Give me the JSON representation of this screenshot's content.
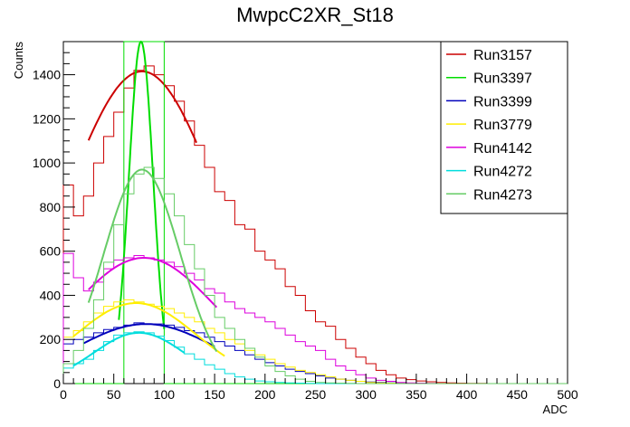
{
  "chart_data": {
    "type": "line",
    "title": "MwpcC2XR_St18",
    "xlabel": "ADC",
    "ylabel": "Counts",
    "xlim": [
      0,
      500
    ],
    "ylim": [
      0,
      1550
    ],
    "xticks": [
      0,
      50,
      100,
      150,
      200,
      250,
      300,
      350,
      400,
      450,
      500
    ],
    "yticks": [
      0,
      200,
      400,
      600,
      800,
      1000,
      1200,
      1400
    ],
    "grid": false,
    "legend_position": "top-right",
    "series": [
      {
        "name": "Run3157",
        "color": "#cc0000",
        "style": "histogram",
        "fit": {
          "mean": 78,
          "sigma": 75,
          "amplitude": 1415,
          "range": [
            25,
            132
          ]
        },
        "x": [
          0,
          10,
          20,
          30,
          40,
          50,
          60,
          70,
          80,
          90,
          100,
          110,
          120,
          130,
          140,
          150,
          160,
          170,
          180,
          190,
          200,
          210,
          220,
          230,
          240,
          250,
          260,
          270,
          280,
          290,
          300,
          310,
          320,
          330,
          340,
          350,
          360,
          370,
          380,
          390,
          400,
          410,
          420,
          430,
          440,
          450,
          460,
          470,
          480,
          490,
          500
        ],
        "values": [
          900,
          760,
          850,
          1000,
          1120,
          1230,
          1340,
          1420,
          1440,
          1400,
          1350,
          1280,
          1190,
          1080,
          980,
          870,
          830,
          720,
          700,
          600,
          560,
          520,
          440,
          400,
          330,
          280,
          260,
          200,
          160,
          120,
          90,
          60,
          40,
          25,
          18,
          12,
          8,
          5,
          3,
          2,
          1,
          1,
          0,
          0,
          0,
          0,
          0,
          0,
          0,
          0,
          0
        ]
      },
      {
        "name": "Run3397",
        "color": "#00dd00",
        "style": "histogram",
        "fit": {
          "mean": 77,
          "sigma": 12,
          "amplitude": 1550,
          "range": [
            55,
            100
          ]
        },
        "x": [
          0,
          10,
          20,
          30,
          40,
          50,
          60,
          70,
          80,
          90,
          100,
          110,
          120,
          130,
          140,
          150,
          160,
          170,
          180,
          190,
          200,
          210,
          220,
          230,
          240,
          250,
          260,
          270,
          280,
          290,
          300,
          310,
          320,
          330,
          340,
          350,
          360,
          370,
          380,
          390,
          400,
          410,
          420,
          430,
          440,
          450,
          460,
          470,
          480,
          490,
          500
        ],
        "values": [
          0,
          0,
          0,
          0,
          0,
          0,
          1550,
          1550,
          1550,
          1550,
          0,
          0,
          0,
          0,
          0,
          0,
          0,
          0,
          0,
          0,
          0,
          0,
          0,
          0,
          0,
          0,
          0,
          0,
          0,
          0,
          0,
          0,
          0,
          0,
          0,
          0,
          0,
          0,
          0,
          0,
          0,
          0,
          0,
          0,
          0,
          0,
          0,
          0,
          0,
          0,
          0
        ]
      },
      {
        "name": "Run3399",
        "color": "#0000bb",
        "style": "histogram",
        "fit": {
          "mean": 82,
          "sigma": 70,
          "amplitude": 270,
          "range": [
            20,
            150
          ]
        },
        "x": [
          0,
          10,
          20,
          30,
          40,
          50,
          60,
          70,
          80,
          90,
          100,
          110,
          120,
          130,
          140,
          150,
          160,
          170,
          180,
          190,
          200,
          210,
          220,
          230,
          240,
          250,
          260,
          270,
          280,
          290,
          300,
          310,
          320,
          330,
          340,
          350,
          360,
          370,
          380,
          390,
          400,
          410,
          420,
          430,
          440,
          450,
          460,
          470,
          480,
          490,
          500
        ],
        "values": [
          180,
          200,
          210,
          230,
          245,
          255,
          265,
          275,
          270,
          270,
          265,
          255,
          240,
          230,
          210,
          190,
          170,
          150,
          130,
          110,
          95,
          80,
          65,
          55,
          45,
          35,
          25,
          20,
          15,
          10,
          7,
          5,
          3,
          2,
          1,
          0,
          0,
          0,
          0,
          0,
          0,
          0,
          0,
          0,
          0,
          0,
          0,
          0,
          0,
          0,
          0
        ]
      },
      {
        "name": "Run3779",
        "color": "#ffee00",
        "style": "histogram",
        "fit": {
          "mean": 72,
          "sigma": 60,
          "amplitude": 365,
          "range": [
            10,
            160
          ]
        },
        "x": [
          0,
          10,
          20,
          30,
          40,
          50,
          60,
          70,
          80,
          90,
          100,
          110,
          120,
          130,
          140,
          150,
          160,
          170,
          180,
          190,
          200,
          210,
          220,
          230,
          240,
          250,
          260,
          270,
          280,
          290,
          300,
          310,
          320,
          330,
          340,
          350,
          360,
          370,
          380,
          390,
          400,
          410,
          420,
          430,
          440,
          450,
          460,
          470,
          480,
          490,
          500
        ],
        "values": [
          210,
          240,
          280,
          320,
          350,
          370,
          380,
          370,
          360,
          350,
          340,
          320,
          300,
          280,
          250,
          230,
          200,
          180,
          150,
          130,
          110,
          90,
          75,
          60,
          50,
          40,
          30,
          20,
          15,
          10,
          5,
          3,
          2,
          1,
          1,
          0,
          0,
          0,
          0,
          0,
          0,
          0,
          0,
          0,
          0,
          0,
          0,
          0,
          0,
          0,
          0
        ]
      },
      {
        "name": "Run4142",
        "color": "#dd00dd",
        "style": "histogram",
        "fit": {
          "mean": 80,
          "sigma": 72,
          "amplitude": 570,
          "range": [
            25,
            152
          ]
        },
        "x": [
          0,
          10,
          20,
          30,
          40,
          50,
          60,
          70,
          80,
          90,
          100,
          110,
          120,
          130,
          140,
          150,
          160,
          170,
          180,
          190,
          200,
          210,
          220,
          230,
          240,
          250,
          260,
          270,
          280,
          290,
          300,
          310,
          320,
          330,
          340,
          350,
          360,
          370,
          380,
          390,
          400,
          410,
          420,
          430,
          440,
          450,
          460,
          470,
          480,
          490,
          500
        ],
        "values": [
          590,
          480,
          420,
          460,
          520,
          560,
          570,
          580,
          570,
          560,
          550,
          530,
          500,
          470,
          430,
          410,
          370,
          340,
          320,
          300,
          280,
          250,
          220,
          190,
          170,
          150,
          110,
          80,
          60,
          40,
          25,
          15,
          10,
          5,
          3,
          2,
          1,
          0,
          0,
          0,
          0,
          0,
          0,
          0,
          0,
          0,
          0,
          0,
          0,
          0,
          0
        ]
      },
      {
        "name": "Run4272",
        "color": "#00dddd",
        "style": "histogram",
        "fit": {
          "mean": 75,
          "sigma": 45,
          "amplitude": 230,
          "range": [
            10,
            120
          ]
        },
        "x": [
          0,
          10,
          20,
          30,
          40,
          50,
          60,
          70,
          80,
          90,
          100,
          110,
          120,
          130,
          140,
          150,
          160,
          170,
          180,
          190,
          200,
          210,
          220,
          230,
          240,
          250,
          260,
          270,
          280,
          290,
          300,
          310,
          320,
          330,
          340,
          350,
          360,
          370,
          380,
          390,
          400,
          410,
          420,
          430,
          440,
          450,
          460,
          470,
          480,
          490,
          500
        ],
        "values": [
          70,
          90,
          110,
          150,
          190,
          220,
          230,
          235,
          230,
          215,
          195,
          165,
          135,
          110,
          85,
          65,
          45,
          30,
          20,
          12,
          8,
          5,
          3,
          2,
          1,
          0,
          0,
          0,
          0,
          0,
          0,
          0,
          0,
          0,
          0,
          0,
          0,
          0,
          0,
          0,
          0,
          0,
          0,
          0,
          0,
          0,
          0,
          0,
          0,
          0,
          0
        ]
      },
      {
        "name": "Run4273",
        "color": "#66cc66",
        "style": "histogram",
        "fit": {
          "mean": 78,
          "sigma": 38,
          "amplitude": 970,
          "range": [
            25,
            152
          ]
        },
        "x": [
          0,
          10,
          20,
          30,
          40,
          50,
          60,
          70,
          80,
          90,
          100,
          110,
          120,
          130,
          140,
          150,
          160,
          170,
          180,
          190,
          200,
          210,
          220,
          230,
          240,
          250,
          260,
          270,
          280,
          290,
          300,
          310,
          320,
          330,
          340,
          350,
          360,
          370,
          380,
          390,
          400,
          410,
          420,
          430,
          440,
          450,
          460,
          470,
          480,
          490,
          500
        ],
        "values": [
          90,
          150,
          250,
          380,
          550,
          720,
          860,
          950,
          980,
          930,
          860,
          760,
          630,
          520,
          400,
          300,
          250,
          200,
          160,
          120,
          80,
          55,
          35,
          20,
          10,
          5,
          3,
          2,
          1,
          0,
          0,
          0,
          0,
          0,
          0,
          0,
          0,
          0,
          0,
          0,
          0,
          0,
          0,
          0,
          0,
          0,
          0,
          0,
          0,
          0,
          0
        ]
      }
    ]
  }
}
